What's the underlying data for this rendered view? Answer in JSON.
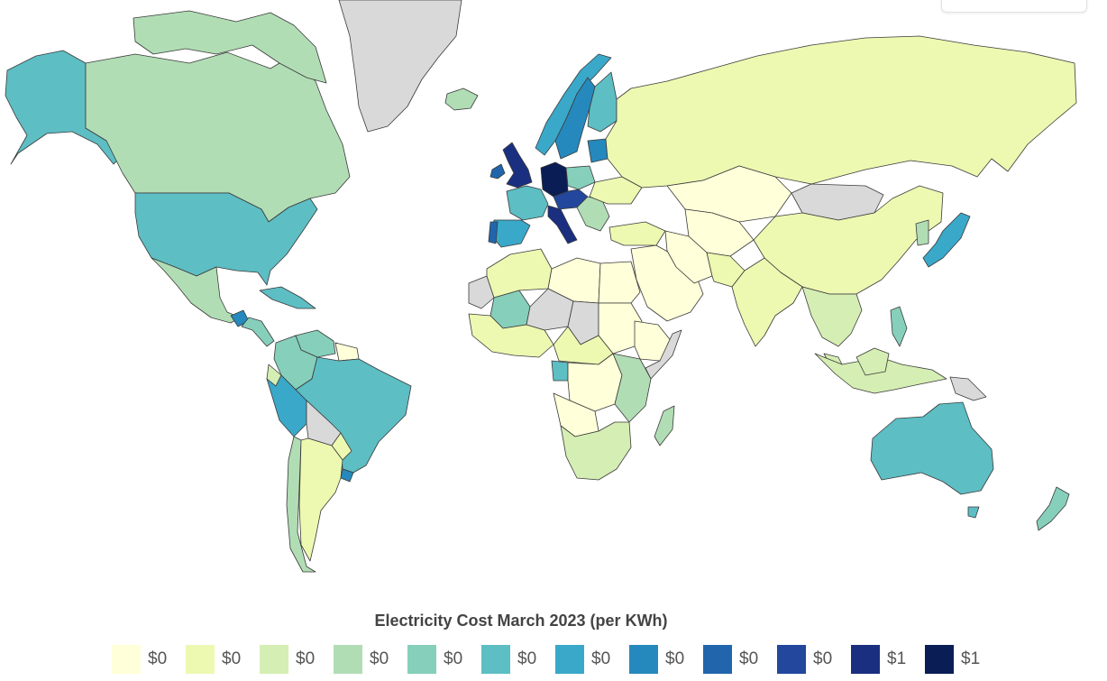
{
  "legend": {
    "title": "Electricity Cost March 2023 (per KWh)",
    "items": [
      {
        "label": "$0",
        "color": "#ffffd9"
      },
      {
        "label": "$0",
        "color": "#edf8b1"
      },
      {
        "label": "$0",
        "color": "#d5eeb3"
      },
      {
        "label": "$0",
        "color": "#b1ddb5"
      },
      {
        "label": "$0",
        "color": "#86cfbb"
      },
      {
        "label": "$0",
        "color": "#5dbec4"
      },
      {
        "label": "$0",
        "color": "#3aa8c9"
      },
      {
        "label": "$0",
        "color": "#2589bd"
      },
      {
        "label": "$0",
        "color": "#2166ac"
      },
      {
        "label": "$0",
        "color": "#22479c"
      },
      {
        "label": "$1",
        "color": "#1a2f80"
      },
      {
        "label": "$1",
        "color": "#0a1d55"
      }
    ]
  },
  "map": {
    "no_data_color": "#d9d9d9",
    "regions": [
      {
        "name": "Alaska (USA)",
        "bucket": 5
      },
      {
        "name": "Canada",
        "bucket": 3
      },
      {
        "name": "United States",
        "bucket": 5
      },
      {
        "name": "Mexico",
        "bucket": 3
      },
      {
        "name": "Central America",
        "bucket": 4
      },
      {
        "name": "Guatemala",
        "bucket": 7
      },
      {
        "name": "Caribbean",
        "bucket": 5
      },
      {
        "name": "Colombia",
        "bucket": 4
      },
      {
        "name": "Venezuela",
        "bucket": 4
      },
      {
        "name": "Guyana",
        "bucket": 0
      },
      {
        "name": "Ecuador",
        "bucket": 2
      },
      {
        "name": "Peru",
        "bucket": 6
      },
      {
        "name": "Brazil",
        "bucket": 5
      },
      {
        "name": "Bolivia",
        "bucket": -1
      },
      {
        "name": "Paraguay",
        "bucket": 1
      },
      {
        "name": "Uruguay",
        "bucket": 7
      },
      {
        "name": "Argentina",
        "bucket": 1
      },
      {
        "name": "Chile",
        "bucket": 3
      },
      {
        "name": "Greenland",
        "bucket": -1
      },
      {
        "name": "Iceland",
        "bucket": 3
      },
      {
        "name": "Ireland",
        "bucket": 8
      },
      {
        "name": "United Kingdom",
        "bucket": 10
      },
      {
        "name": "Norway",
        "bucket": 6
      },
      {
        "name": "Sweden",
        "bucket": 7
      },
      {
        "name": "Finland",
        "bucket": 5
      },
      {
        "name": "Baltics",
        "bucket": 7
      },
      {
        "name": "Germany",
        "bucket": 11
      },
      {
        "name": "France",
        "bucket": 5
      },
      {
        "name": "Spain",
        "bucket": 6
      },
      {
        "name": "Portugal",
        "bucket": 8
      },
      {
        "name": "Italy",
        "bucket": 10
      },
      {
        "name": "Central Europe",
        "bucket": 9
      },
      {
        "name": "Poland",
        "bucket": 4
      },
      {
        "name": "Ukraine",
        "bucket": 1
      },
      {
        "name": "Balkans",
        "bucket": 3
      },
      {
        "name": "Turkey",
        "bucket": 1
      },
      {
        "name": "Russia",
        "bucket": 1
      },
      {
        "name": "Kazakhstan",
        "bucket": 0
      },
      {
        "name": "Central Asia",
        "bucket": 0
      },
      {
        "name": "Mongolia",
        "bucket": -1
      },
      {
        "name": "China",
        "bucket": 1
      },
      {
        "name": "Korea",
        "bucket": 3
      },
      {
        "name": "Japan",
        "bucket": 6
      },
      {
        "name": "Middle East",
        "bucket": 0
      },
      {
        "name": "Iran",
        "bucket": 0
      },
      {
        "name": "Afghanistan",
        "bucket": 1
      },
      {
        "name": "India",
        "bucket": 1
      },
      {
        "name": "Southeast Asia",
        "bucket": 2
      },
      {
        "name": "Philippines",
        "bucket": 4
      },
      {
        "name": "Indonesia",
        "bucket": 2
      },
      {
        "name": "Papua New Guinea",
        "bucket": -1
      },
      {
        "name": "Australia",
        "bucket": 5
      },
      {
        "name": "New Zealand",
        "bucket": 4
      },
      {
        "name": "North Africa",
        "bucket": 1
      },
      {
        "name": "Egypt",
        "bucket": 0
      },
      {
        "name": "Libya",
        "bucket": 0
      },
      {
        "name": "Western Sahara",
        "bucket": -1
      },
      {
        "name": "Mali",
        "bucket": 4
      },
      {
        "name": "Niger",
        "bucket": -1
      },
      {
        "name": "Sudan",
        "bucket": 0
      },
      {
        "name": "Chad",
        "bucket": -1
      },
      {
        "name": "West Africa",
        "bucket": 1
      },
      {
        "name": "Central Africa",
        "bucket": 1
      },
      {
        "name": "Gabon",
        "bucket": 5
      },
      {
        "name": "DR Congo",
        "bucket": 0
      },
      {
        "name": "Ethiopia",
        "bucket": 0
      },
      {
        "name": "Somalia",
        "bucket": -1
      },
      {
        "name": "East Africa",
        "bucket": 3
      },
      {
        "name": "Angola",
        "bucket": 0
      },
      {
        "name": "Southern Africa",
        "bucket": 2
      },
      {
        "name": "Madagascar",
        "bucket": 3
      }
    ]
  }
}
